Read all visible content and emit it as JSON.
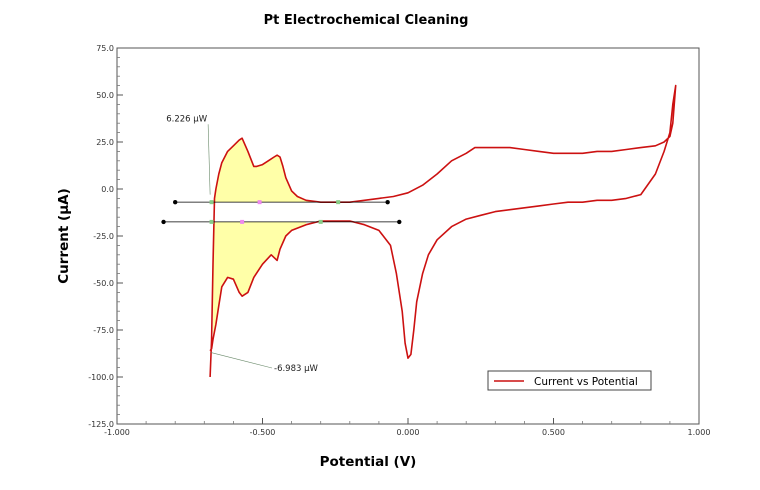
{
  "chart_data": {
    "type": "line",
    "title": "Pt Electrochemical Cleaning",
    "xlabel": "Potential (V)",
    "ylabel": "Current (μA)",
    "xlim": [
      -1.0,
      1.0
    ],
    "ylim": [
      -125.0,
      75.0
    ],
    "x_ticks": [
      -1.0,
      -0.5,
      0.0,
      0.5,
      1.0
    ],
    "x_tick_labels": [
      "-1.000",
      "-0.500",
      "0.000",
      "0.500",
      "1.000"
    ],
    "y_ticks": [
      75,
      50,
      25,
      0,
      -25,
      -50,
      -75,
      -100,
      -125
    ],
    "y_tick_labels": [
      "75.0",
      "50.0",
      "25.0",
      "0.0",
      "-25.0",
      "-50.0",
      "-75.0",
      "-100.0",
      "-125.0"
    ],
    "grid": false,
    "legend": {
      "position": "bottom-right",
      "entries": [
        "Current vs Potential"
      ]
    },
    "colors": {
      "series": "#cc1111",
      "fill": "#ffffa8",
      "baseline": "#000000"
    },
    "series": [
      {
        "name": "Current vs Potential",
        "x": [
          -0.68,
          -0.675,
          -0.67,
          -0.665,
          -0.66,
          -0.65,
          -0.64,
          -0.62,
          -0.6,
          -0.58,
          -0.57,
          -0.55,
          -0.53,
          -0.52,
          -0.5,
          -0.48,
          -0.46,
          -0.45,
          -0.44,
          -0.43,
          -0.42,
          -0.4,
          -0.38,
          -0.35,
          -0.3,
          -0.25,
          -0.2,
          -0.15,
          -0.1,
          -0.05,
          0.0,
          0.05,
          0.1,
          0.15,
          0.2,
          0.23,
          0.26,
          0.3,
          0.35,
          0.4,
          0.45,
          0.5,
          0.55,
          0.6,
          0.65,
          0.7,
          0.75,
          0.8,
          0.85,
          0.88,
          0.9,
          0.91,
          0.92,
          0.91,
          0.9,
          0.88,
          0.85,
          0.8,
          0.75,
          0.7,
          0.65,
          0.6,
          0.55,
          0.5,
          0.45,
          0.4,
          0.35,
          0.3,
          0.25,
          0.2,
          0.15,
          0.1,
          0.07,
          0.05,
          0.03,
          0.02,
          0.01,
          0.0,
          -0.01,
          -0.02,
          -0.04,
          -0.06,
          -0.1,
          -0.15,
          -0.2,
          -0.25,
          -0.3,
          -0.35,
          -0.4,
          -0.42,
          -0.44,
          -0.45,
          -0.47,
          -0.5,
          -0.53,
          -0.55,
          -0.57,
          -0.58,
          -0.6,
          -0.62,
          -0.64,
          -0.65,
          -0.66,
          -0.67,
          -0.675,
          -0.68
        ],
        "y": [
          -100,
          -80,
          -40,
          -5,
          0,
          8,
          14,
          20,
          23,
          26,
          27,
          20,
          12,
          12,
          13,
          15,
          17,
          18,
          17,
          12,
          6,
          -1,
          -4,
          -6,
          -7,
          -7,
          -7,
          -6,
          -5,
          -4,
          -2,
          2,
          8,
          15,
          19,
          22,
          22,
          22,
          22,
          21,
          20,
          19,
          19,
          19,
          20,
          20,
          21,
          22,
          23,
          25,
          28,
          35,
          55,
          45,
          30,
          20,
          8,
          -3,
          -5,
          -6,
          -6,
          -7,
          -7,
          -8,
          -9,
          -10,
          -11,
          -12,
          -14,
          -16,
          -20,
          -27,
          -35,
          -45,
          -60,
          -75,
          -88,
          -90,
          -82,
          -65,
          -45,
          -30,
          -22,
          -19,
          -17,
          -17,
          -17,
          -19,
          -22,
          -25,
          -32,
          -38,
          -35,
          -40,
          -47,
          -55,
          -57,
          -55,
          -48,
          -47,
          -52,
          -62,
          -72,
          -80,
          -85,
          -86
        ]
      }
    ],
    "baselines": [
      {
        "x": [
          -0.8,
          -0.07
        ],
        "y": [
          -7,
          -7
        ]
      },
      {
        "x": [
          -0.84,
          -0.03
        ],
        "y": [
          -17.5,
          -17.5
        ]
      }
    ],
    "annotations": [
      {
        "text": "6.226 μW",
        "x": -0.68,
        "y": 36
      },
      {
        "text": "-6.983 μW",
        "x": -0.68,
        "y": -87
      }
    ]
  }
}
